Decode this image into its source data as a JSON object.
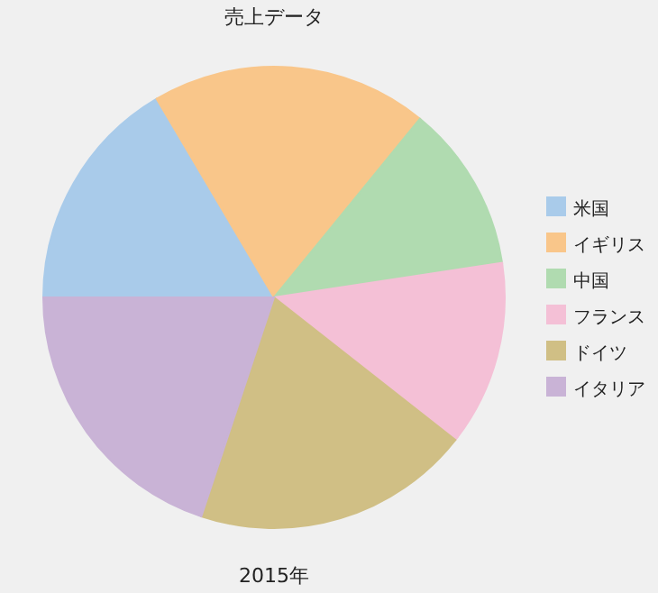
{
  "chart_data": {
    "type": "pie",
    "title": "売上データ",
    "xlabel": "2015年",
    "categories": [
      "米国",
      "イギリス",
      "中国",
      "フランス",
      "ドイツ",
      "イタリア"
    ],
    "values": [
      16.5,
      19.4,
      11.7,
      13.0,
      19.5,
      19.9
    ],
    "colors": [
      "#a9cbea",
      "#f9c68a",
      "#b0dbb0",
      "#f4c0d6",
      "#d0bf85",
      "#c9b3d6"
    ],
    "legend": "right"
  }
}
